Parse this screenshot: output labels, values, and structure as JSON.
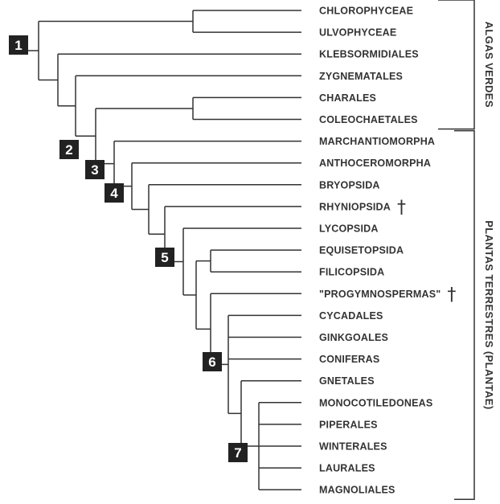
{
  "taxa": [
    {
      "id": "chlorophyceae",
      "label": "CHLOROPHYCEAE",
      "extinct": false
    },
    {
      "id": "ulvophyceae",
      "label": "ULVOPHYCEAE",
      "extinct": false
    },
    {
      "id": "klebsormidiales",
      "label": "KLEBSORMIDIALES",
      "extinct": false
    },
    {
      "id": "zygnematales",
      "label": "ZYGNEMATALES",
      "extinct": false
    },
    {
      "id": "charales",
      "label": "CHARALES",
      "extinct": false
    },
    {
      "id": "coleochaetales",
      "label": "COLEOCHAETALES",
      "extinct": false
    },
    {
      "id": "marchantiomorpha",
      "label": "MARCHANTIOMORPHA",
      "extinct": false
    },
    {
      "id": "anthoceromorpha",
      "label": "ANTHOCEROMORPHA",
      "extinct": false
    },
    {
      "id": "bryopsida",
      "label": "BRYOPSIDA",
      "extinct": false
    },
    {
      "id": "rhyniopsida",
      "label": "RHYNIOPSIDA",
      "extinct": true
    },
    {
      "id": "lycopsida",
      "label": "LYCOPSIDA",
      "extinct": false
    },
    {
      "id": "equisetopsida",
      "label": "EQUISETOPSIDA",
      "extinct": false
    },
    {
      "id": "filicopsida",
      "label": "FILICOPSIDA",
      "extinct": false
    },
    {
      "id": "progymnospermas",
      "label": "\"PROGYMNOSPERMAS\"",
      "extinct": true
    },
    {
      "id": "cycadales",
      "label": "CYCADALES",
      "extinct": false
    },
    {
      "id": "ginkgoales",
      "label": "GINKGOALES",
      "extinct": false
    },
    {
      "id": "coniferas",
      "label": "CONIFERAS",
      "extinct": false
    },
    {
      "id": "gnetales",
      "label": "GNETALES",
      "extinct": false
    },
    {
      "id": "monocotiledoneas",
      "label": "MONOCOTILEDONEAS",
      "extinct": false
    },
    {
      "id": "piperales",
      "label": "PIPERALES",
      "extinct": false
    },
    {
      "id": "winterales",
      "label": "WINTERALES",
      "extinct": false
    },
    {
      "id": "laurales",
      "label": "LAURALES",
      "extinct": false
    },
    {
      "id": "magnoliales",
      "label": "MAGNOLIALES",
      "extinct": false
    }
  ],
  "extinct_symbol": "†",
  "nodes": [
    {
      "id": "n1",
      "label": "1"
    },
    {
      "id": "n2",
      "label": "2"
    },
    {
      "id": "n3",
      "label": "3"
    },
    {
      "id": "n4",
      "label": "4"
    },
    {
      "id": "n5",
      "label": "5"
    },
    {
      "id": "n6",
      "label": "6"
    },
    {
      "id": "n7",
      "label": "7"
    }
  ],
  "groups": [
    {
      "id": "algas-verdes",
      "label": "ALGAS VERDES",
      "from": "chlorophyceae",
      "to": "coleochaetales"
    },
    {
      "id": "plantas-terrestres",
      "label": "PLANTAS TERRESTRES (PLANTAE)",
      "from": "marchantiomorpha",
      "to": "magnoliales"
    }
  ],
  "colors": {
    "line": "#333333",
    "node_box": "#222222",
    "node_text": "#ffffff"
  }
}
